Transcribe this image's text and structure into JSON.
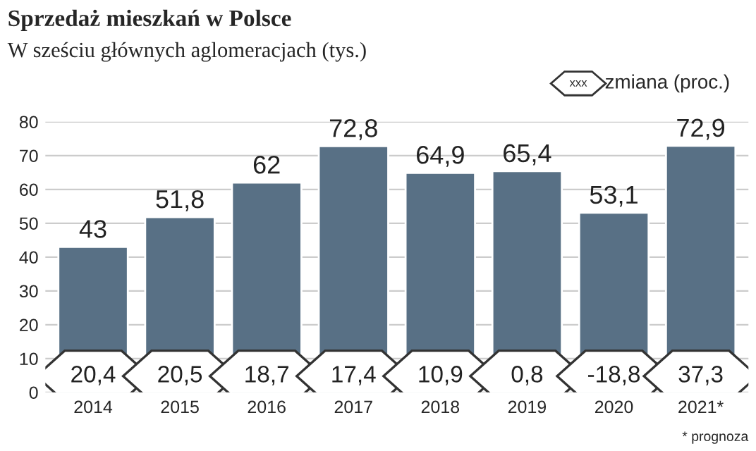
{
  "chart_data": {
    "type": "bar",
    "title": "Sprzedaż mieszkań w Polsce",
    "subtitle": "W sześciu głównych aglomeracjach (tys.)",
    "categories": [
      "2014",
      "2015",
      "2016",
      "2017",
      "2018",
      "2019",
      "2020",
      "2021*"
    ],
    "values": [
      43,
      51.8,
      62,
      72.8,
      64.9,
      65.4,
      53.1,
      72.9
    ],
    "value_labels": [
      "43",
      "51,8",
      "62",
      "72,8",
      "64,9",
      "65,4",
      "53,1",
      "72,9"
    ],
    "color": "#587085",
    "ylim": [
      0,
      80
    ],
    "yticks": [
      0,
      10,
      20,
      30,
      40,
      50,
      60,
      70,
      80
    ],
    "grid": "y",
    "annotations": [
      "20,4",
      "20,5",
      "18,7",
      "17,4",
      "10,9",
      "0,8",
      "-18,8",
      "37,3",
      "xxx",
      "zmiana (proc.)",
      "* prognoza"
    ]
  }
}
